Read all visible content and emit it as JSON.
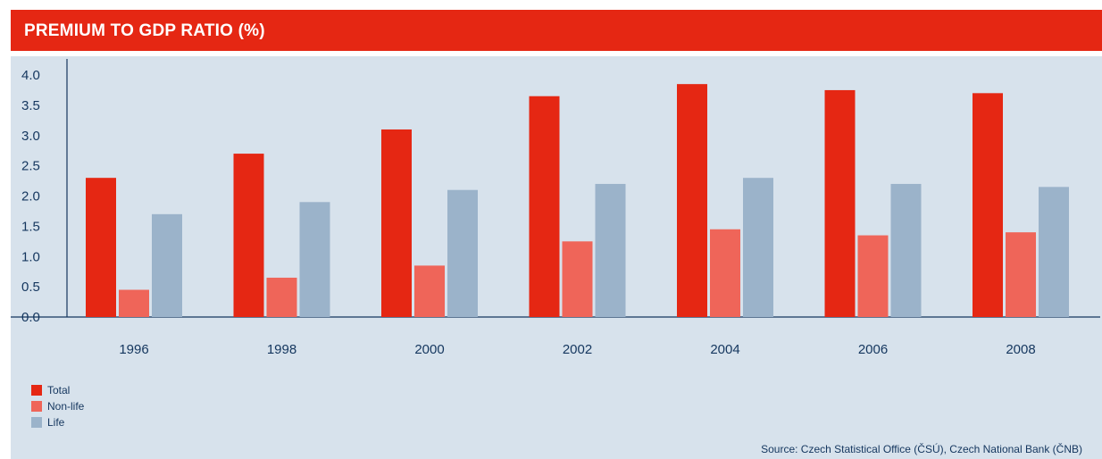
{
  "header": {
    "title": "PREMIUM TO GDP RATIO (%)"
  },
  "colors": {
    "header_bg": "#e52713",
    "panel_bg": "#d7e2ec",
    "axis": "#14365e",
    "total": "#e52713",
    "nonlife": "#ef6559",
    "life": "#9bb3ca"
  },
  "chart_data": {
    "type": "bar",
    "title": "PREMIUM TO GDP RATIO (%)",
    "categories": [
      "1996",
      "1998",
      "2000",
      "2002",
      "2004",
      "2006",
      "2008"
    ],
    "series": [
      {
        "name": "Total",
        "color": "#e52713",
        "values": [
          2.3,
          2.7,
          3.1,
          3.65,
          3.85,
          3.75,
          3.7
        ]
      },
      {
        "name": "Non-life",
        "color": "#ef6559",
        "values": [
          0.45,
          0.65,
          0.85,
          1.25,
          1.45,
          1.35,
          1.4
        ]
      },
      {
        "name": "Life",
        "color": "#9bb3ca",
        "values": [
          1.7,
          1.9,
          2.1,
          2.2,
          2.3,
          2.2,
          2.15
        ]
      }
    ],
    "yticks": [
      "0.0",
      "0.5",
      "1.0",
      "1.5",
      "2.0",
      "2.5",
      "3.0",
      "3.5",
      "4.0"
    ],
    "ylim": [
      0,
      4.0
    ],
    "grid": false,
    "legend_position": "bottom-left"
  },
  "legend": [
    {
      "label": "Total"
    },
    {
      "label": "Non-life"
    },
    {
      "label": "Life"
    }
  ],
  "source": "Source: Czech Statistical Office (ČSÚ), Czech National Bank (ČNB)"
}
